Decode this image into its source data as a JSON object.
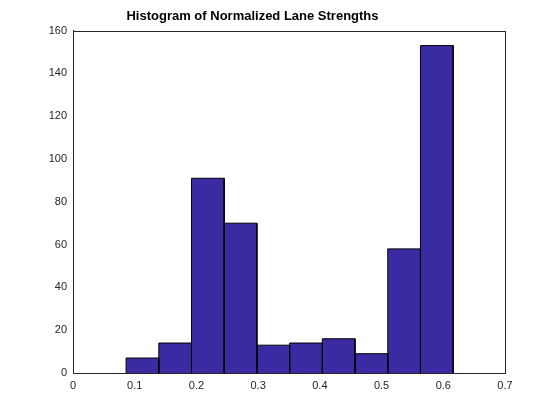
{
  "chart_data": {
    "type": "histogram",
    "title": "Histogram of Normalized Lane Strengths",
    "bins": [
      0.086,
      0.139,
      0.192,
      0.245,
      0.298,
      0.351,
      0.404,
      0.457,
      0.51,
      0.563,
      0.616
    ],
    "values": [
      7,
      14,
      91,
      70,
      13,
      14,
      16,
      9,
      58,
      153
    ],
    "color": "#3a2ba3",
    "xlim": [
      0,
      0.7
    ],
    "xticks": [
      0,
      0.1,
      0.2,
      0.3,
      0.4,
      0.5,
      0.6,
      0.7
    ],
    "ylim": [
      0,
      160
    ],
    "yticks": [
      0,
      20,
      40,
      60,
      80,
      100,
      120,
      140,
      160
    ],
    "grid": false
  }
}
